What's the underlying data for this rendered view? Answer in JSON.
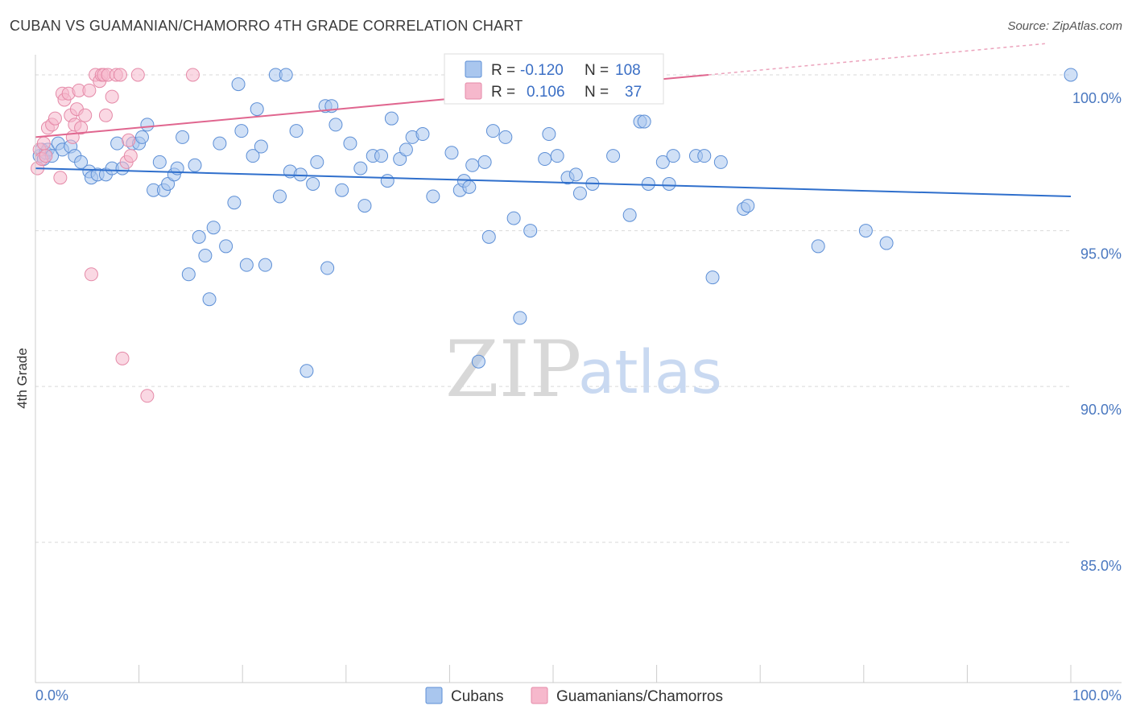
{
  "title": "CUBAN VS GUAMANIAN/CHAMORRO 4TH GRADE CORRELATION CHART",
  "source": "Source: ZipAtlas.com",
  "watermark": {
    "zip": "ZIP",
    "atlas": "atlas"
  },
  "colors": {
    "cuban_fill": "#a9c6ee",
    "cuban_stroke": "#5d8fd6",
    "cuban_line": "#2f6fcc",
    "guam_fill": "#f6b8cc",
    "guam_stroke": "#e58aa8",
    "guam_line": "#e0668f",
    "grid": "#d9d9d9",
    "tick_label": "#4a78c0"
  },
  "chart_data": {
    "type": "scatter",
    "title": "CUBAN VS GUAMANIAN/CHAMORRO 4TH GRADE CORRELATION CHART",
    "ylabel": "4th Grade",
    "xlim": [
      0,
      100
    ],
    "ylim": [
      80.5,
      100.8
    ],
    "x_tick_labels": [
      "0.0%",
      "100.0%"
    ],
    "y_ticks": [
      {
        "value": 100,
        "label": "100.0%"
      },
      {
        "value": 95,
        "label": "95.0%"
      },
      {
        "value": 90,
        "label": "90.0%"
      },
      {
        "value": 85,
        "label": "85.0%"
      }
    ],
    "legend": {
      "r_label": "R =",
      "n_label": "N =",
      "entries": [
        {
          "r": "-0.120",
          "n": "108"
        },
        {
          "r": "0.106",
          "n": "37"
        }
      ]
    },
    "series": [
      {
        "name": "Cubans",
        "trend": {
          "x": [
            0,
            100
          ],
          "y": [
            97.0,
            96.1
          ]
        },
        "points": [
          [
            0.4,
            97.4
          ],
          [
            0.6,
            97.6
          ],
          [
            0.8,
            97.3
          ],
          [
            1.0,
            97.5
          ],
          [
            1.2,
            97.6
          ],
          [
            1.6,
            97.4
          ],
          [
            2.2,
            97.8
          ],
          [
            2.6,
            97.6
          ],
          [
            3.4,
            97.7
          ],
          [
            3.8,
            97.4
          ],
          [
            4.4,
            97.2
          ],
          [
            5.2,
            96.9
          ],
          [
            5.4,
            96.7
          ],
          [
            6.0,
            96.8
          ],
          [
            6.8,
            96.8
          ],
          [
            7.4,
            97.0
          ],
          [
            7.9,
            97.8
          ],
          [
            8.4,
            97.0
          ],
          [
            9.4,
            97.8
          ],
          [
            10.0,
            97.8
          ],
          [
            10.3,
            98.0
          ],
          [
            10.8,
            98.4
          ],
          [
            11.4,
            96.3
          ],
          [
            12.0,
            97.2
          ],
          [
            12.4,
            96.3
          ],
          [
            12.8,
            96.5
          ],
          [
            13.4,
            96.8
          ],
          [
            13.7,
            97.0
          ],
          [
            14.2,
            98.0
          ],
          [
            14.8,
            93.6
          ],
          [
            15.4,
            97.1
          ],
          [
            15.8,
            94.8
          ],
          [
            16.4,
            94.2
          ],
          [
            16.8,
            92.8
          ],
          [
            17.2,
            95.1
          ],
          [
            17.8,
            97.8
          ],
          [
            18.4,
            94.5
          ],
          [
            19.2,
            95.9
          ],
          [
            19.6,
            99.7
          ],
          [
            19.9,
            98.2
          ],
          [
            20.4,
            93.9
          ],
          [
            21.0,
            97.4
          ],
          [
            21.4,
            98.9
          ],
          [
            21.8,
            97.7
          ],
          [
            22.2,
            93.9
          ],
          [
            23.2,
            100.0
          ],
          [
            23.6,
            96.1
          ],
          [
            24.2,
            100.0
          ],
          [
            24.6,
            96.9
          ],
          [
            25.2,
            98.2
          ],
          [
            25.6,
            96.8
          ],
          [
            26.2,
            90.5
          ],
          [
            26.8,
            96.5
          ],
          [
            27.2,
            97.2
          ],
          [
            28.0,
            99.0
          ],
          [
            28.2,
            93.8
          ],
          [
            28.6,
            99.0
          ],
          [
            29.0,
            98.4
          ],
          [
            29.6,
            96.3
          ],
          [
            30.4,
            97.8
          ],
          [
            31.4,
            97.0
          ],
          [
            31.8,
            95.8
          ],
          [
            32.6,
            97.4
          ],
          [
            33.4,
            97.4
          ],
          [
            34.0,
            96.6
          ],
          [
            34.4,
            98.6
          ],
          [
            35.2,
            97.3
          ],
          [
            35.8,
            97.6
          ],
          [
            36.4,
            98.0
          ],
          [
            37.4,
            98.1
          ],
          [
            38.4,
            96.1
          ],
          [
            40.2,
            97.5
          ],
          [
            41.0,
            96.3
          ],
          [
            41.4,
            96.6
          ],
          [
            41.9,
            96.4
          ],
          [
            42.2,
            97.1
          ],
          [
            42.8,
            90.8
          ],
          [
            43.4,
            97.2
          ],
          [
            43.8,
            94.8
          ],
          [
            44.2,
            98.2
          ],
          [
            45.4,
            98.0
          ],
          [
            46.2,
            95.4
          ],
          [
            46.8,
            92.2
          ],
          [
            47.8,
            95.0
          ],
          [
            49.2,
            97.3
          ],
          [
            49.6,
            98.1
          ],
          [
            50.4,
            97.4
          ],
          [
            51.4,
            96.7
          ],
          [
            52.2,
            96.8
          ],
          [
            52.6,
            96.2
          ],
          [
            53.8,
            96.5
          ],
          [
            55.8,
            97.4
          ],
          [
            57.4,
            95.5
          ],
          [
            58.4,
            98.5
          ],
          [
            58.8,
            98.5
          ],
          [
            59.2,
            96.5
          ],
          [
            60.6,
            97.2
          ],
          [
            61.2,
            96.5
          ],
          [
            61.6,
            97.4
          ],
          [
            63.8,
            97.4
          ],
          [
            64.6,
            97.4
          ],
          [
            65.4,
            93.5
          ],
          [
            66.2,
            97.2
          ],
          [
            68.4,
            95.7
          ],
          [
            68.8,
            95.8
          ],
          [
            75.6,
            94.5
          ],
          [
            80.2,
            95.0
          ],
          [
            82.2,
            94.6
          ],
          [
            100.0,
            100.0
          ]
        ]
      },
      {
        "name": "Guamanians/Chamorros",
        "trend": {
          "x": [
            0,
            65
          ],
          "y": [
            98.0,
            100.0
          ]
        },
        "points": [
          [
            0.2,
            97.0
          ],
          [
            0.4,
            97.6
          ],
          [
            0.6,
            97.3
          ],
          [
            0.8,
            97.8
          ],
          [
            1.0,
            97.4
          ],
          [
            1.2,
            98.3
          ],
          [
            1.6,
            98.4
          ],
          [
            1.9,
            98.6
          ],
          [
            2.4,
            96.7
          ],
          [
            2.6,
            99.4
          ],
          [
            2.8,
            99.2
          ],
          [
            3.2,
            99.4
          ],
          [
            3.4,
            98.7
          ],
          [
            3.6,
            98.0
          ],
          [
            3.8,
            98.4
          ],
          [
            4.0,
            98.9
          ],
          [
            4.2,
            99.5
          ],
          [
            4.4,
            98.3
          ],
          [
            4.8,
            98.7
          ],
          [
            5.2,
            99.5
          ],
          [
            5.4,
            93.6
          ],
          [
            5.8,
            100.0
          ],
          [
            6.2,
            99.8
          ],
          [
            6.4,
            100.0
          ],
          [
            6.6,
            100.0
          ],
          [
            6.8,
            98.7
          ],
          [
            7.0,
            100.0
          ],
          [
            7.4,
            99.3
          ],
          [
            7.8,
            100.0
          ],
          [
            8.2,
            100.0
          ],
          [
            8.4,
            90.9
          ],
          [
            8.8,
            97.2
          ],
          [
            9.0,
            97.9
          ],
          [
            9.2,
            97.4
          ],
          [
            9.9,
            100.0
          ],
          [
            10.8,
            89.7
          ],
          [
            15.2,
            100.0
          ]
        ]
      }
    ]
  }
}
